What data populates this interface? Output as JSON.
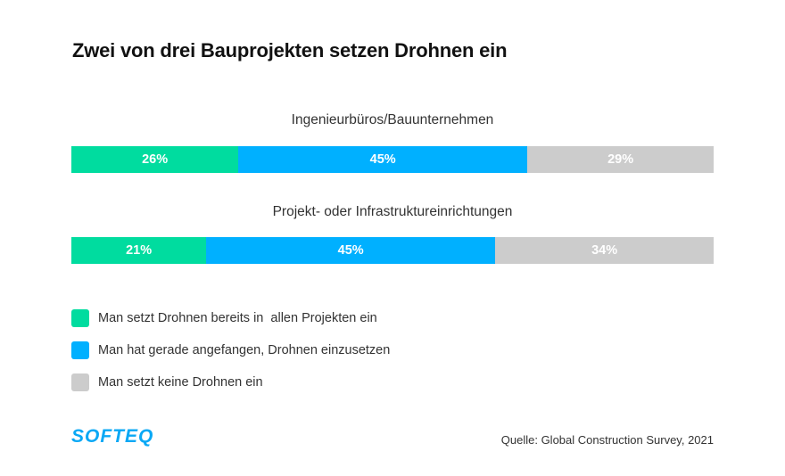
{
  "chart_data": {
    "type": "bar",
    "orientation": "horizontal-stacked-100",
    "title": "Zwei von drei Bauprojekten setzen Drohnen ein",
    "xlabel": "",
    "ylabel": "",
    "xlim": [
      0,
      100
    ],
    "grid": false,
    "legend_position": "bottom-left",
    "categories": [
      "Ingenieurbüros/Bauunternehmen",
      "Projekt- oder Infrastruktureinrichtungen"
    ],
    "series": [
      {
        "name": "Man setzt Drohnen bereits in  allen Projekten ein",
        "color": "#00dc9f",
        "values": [
          26,
          21
        ],
        "labels": [
          "26%",
          "21%"
        ]
      },
      {
        "name": "Man hat gerade angefangen, Drohnen einzusetzen",
        "color": "#00b0ff",
        "values": [
          45,
          45
        ],
        "labels": [
          "45%",
          "45%"
        ]
      },
      {
        "name": "Man setzt keine Drohnen ein",
        "color": "#cccccc",
        "values": [
          29,
          34
        ],
        "labels": [
          "29%",
          "34%"
        ]
      }
    ]
  },
  "footer": {
    "logo": "SOFTEQ",
    "source": "Quelle: Global Construction Survey, 2021"
  }
}
